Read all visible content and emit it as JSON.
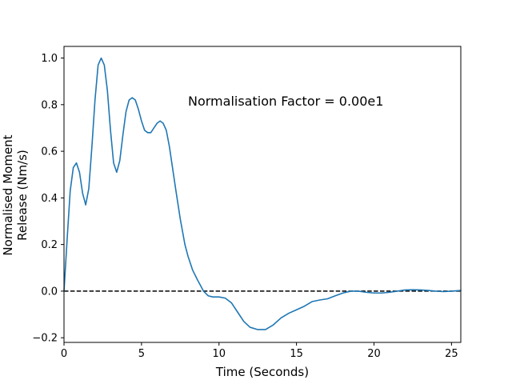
{
  "chart_data": {
    "type": "line",
    "title": "",
    "xlabel": "Time (Seconds)",
    "ylabel_lines": [
      "Normalised Moment",
      "Release (Nm/s)"
    ],
    "xlim": [
      0,
      25.6
    ],
    "ylim": [
      -0.22,
      1.05
    ],
    "xticks": [
      0,
      5,
      10,
      15,
      20,
      25
    ],
    "yticks": [
      -0.2,
      0.0,
      0.2,
      0.4,
      0.6,
      0.8,
      1.0
    ],
    "xtick_labels": [
      "0",
      "5",
      "10",
      "15",
      "20",
      "25"
    ],
    "ytick_labels": [
      "−0.2",
      "0.0",
      "0.2",
      "0.4",
      "0.6",
      "0.8",
      "1.0"
    ],
    "grid": false,
    "annotation": "Normalisation Factor = 0.00e1",
    "reference_line": {
      "y": 0,
      "style": "dashed",
      "color": "#000000"
    },
    "series": [
      {
        "color": "#1f77b4",
        "x": [
          0,
          0.2,
          0.4,
          0.6,
          0.8,
          1.0,
          1.2,
          1.4,
          1.6,
          1.8,
          2.0,
          2.2,
          2.4,
          2.6,
          2.8,
          3.0,
          3.2,
          3.4,
          3.6,
          3.8,
          4.0,
          4.2,
          4.4,
          4.6,
          4.8,
          5.0,
          5.2,
          5.4,
          5.6,
          5.8,
          6.0,
          6.2,
          6.4,
          6.6,
          6.8,
          7.0,
          7.2,
          7.5,
          7.8,
          8.0,
          8.3,
          8.6,
          9.0,
          9.3,
          9.6,
          10.0,
          10.4,
          10.8,
          11.2,
          11.6,
          12.0,
          12.5,
          13.0,
          13.5,
          14.0,
          14.5,
          15.0,
          15.5,
          16.0,
          16.5,
          17.0,
          17.5,
          18.0,
          18.5,
          19.0,
          19.5,
          20.0,
          20.5,
          21.0,
          21.5,
          22.0,
          22.5,
          23.0,
          23.5,
          24.0,
          24.5,
          25.0,
          25.6
        ],
        "y": [
          0.0,
          0.22,
          0.43,
          0.53,
          0.55,
          0.51,
          0.42,
          0.37,
          0.44,
          0.62,
          0.82,
          0.97,
          1.0,
          0.97,
          0.86,
          0.69,
          0.55,
          0.51,
          0.56,
          0.67,
          0.77,
          0.82,
          0.83,
          0.82,
          0.78,
          0.73,
          0.69,
          0.68,
          0.68,
          0.7,
          0.72,
          0.73,
          0.72,
          0.69,
          0.62,
          0.53,
          0.44,
          0.31,
          0.2,
          0.15,
          0.09,
          0.05,
          0.0,
          -0.02,
          -0.025,
          -0.025,
          -0.03,
          -0.05,
          -0.09,
          -0.13,
          -0.155,
          -0.165,
          -0.165,
          -0.145,
          -0.115,
          -0.095,
          -0.08,
          -0.065,
          -0.045,
          -0.038,
          -0.033,
          -0.02,
          -0.008,
          0.0,
          0.0,
          -0.005,
          -0.008,
          -0.008,
          -0.005,
          0.0,
          0.005,
          0.006,
          0.005,
          0.003,
          0.0,
          -0.002,
          0.0,
          0.003
        ]
      }
    ]
  }
}
